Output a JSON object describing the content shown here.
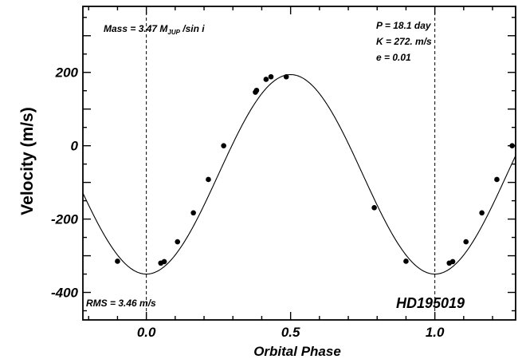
{
  "chart_data": {
    "type": "scatter",
    "xlabel": "Orbital Phase",
    "ylabel": "Velocity  (m/s)",
    "xlim": [
      -0.22,
      1.28
    ],
    "ylim": [
      -475,
      380
    ],
    "x_ticks": [
      0.0,
      0.5,
      1.0
    ],
    "x_tick_labels": [
      "0.0",
      "0.5",
      "1.0"
    ],
    "y_ticks": [
      -400,
      -200,
      0,
      200
    ],
    "y_tick_labels": [
      "-400",
      "-200",
      "0",
      "200"
    ],
    "vertical_reference_lines": [
      0.0,
      1.0
    ],
    "grid": false,
    "fit_curve": {
      "type": "sinusoid",
      "semi_amplitude": 272,
      "offset": -78,
      "peak_phase": 0.5
    },
    "points": [
      {
        "x": -0.1,
        "y": -315
      },
      {
        "x": 0.05,
        "y": -320
      },
      {
        "x": 0.062,
        "y": -316
      },
      {
        "x": 0.108,
        "y": -262
      },
      {
        "x": 0.163,
        "y": -183
      },
      {
        "x": 0.215,
        "y": -92
      },
      {
        "x": 0.268,
        "y": 0
      },
      {
        "x": 0.378,
        "y": 146
      },
      {
        "x": 0.382,
        "y": 151
      },
      {
        "x": 0.415,
        "y": 181
      },
      {
        "x": 0.432,
        "y": 188
      },
      {
        "x": 0.485,
        "y": 188
      },
      {
        "x": 0.79,
        "y": -169
      },
      {
        "x": 0.9,
        "y": -315
      },
      {
        "x": 1.05,
        "y": -320
      },
      {
        "x": 1.062,
        "y": -316
      },
      {
        "x": 1.108,
        "y": -262
      },
      {
        "x": 1.163,
        "y": -183
      },
      {
        "x": 1.215,
        "y": -92
      },
      {
        "x": 1.268,
        "y": 0
      }
    ],
    "annotations": {
      "mass_prefix": "Mass = 3.47 M",
      "mass_subscript": "JUP",
      "mass_suffix": " /sin i",
      "period": "P = 18.1 day",
      "semi_amplitude": "K = 272. m/s",
      "eccentricity": "e = 0.01",
      "rms": "RMS = 3.46 m/s",
      "star_name": "HD195019"
    }
  }
}
